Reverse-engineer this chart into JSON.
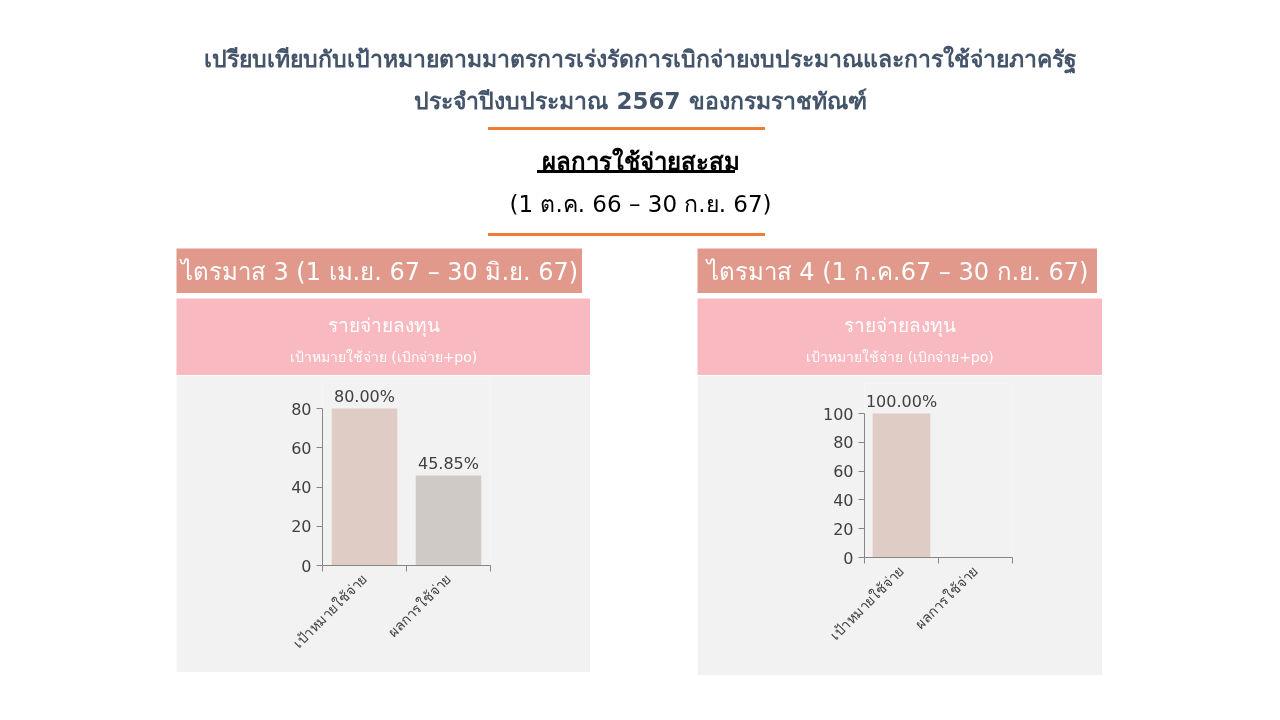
{
  "chart_data": [
    {
      "type": "other",
      "title": "เปรียบเทียบกับเป้าหมายตามมาตรการเร่งรัดการเบิกจ่ายงบประมาณและการใช้จ่ายภาครัฐ ประจำปีงบประมาณ 2567 ของกรมราชทัณฑ์",
      "subtitle": "ผลการใช้จ่ายสะสม",
      "annotations": [
        "(1 ต.ค. 66 – 30 ก.ย. 67)"
      ]
    },
    {
      "type": "bar",
      "title": "ไตรมาส 3 (1 เม.ย. 67 – 30 มิ.ย. 67)",
      "subtitle": "รายจ่ายลงทุน",
      "annotations": [
        "เป้าหมายใช้จ่าย (เบิกจ่าย+po)"
      ],
      "categories": [
        "เป้าหมายใช้จ่าย",
        "ผลการใช้จ่าย"
      ],
      "values": [
        80,
        45.85
      ],
      "colors": [
        "#dfccc5",
        "#d0cac6"
      ],
      "value_labels": [
        "80.00%",
        "45.85%"
      ],
      "ylim": [
        0,
        80
      ],
      "yticks": [
        0,
        20,
        40,
        60,
        80
      ],
      "grid": false
    },
    {
      "type": "bar",
      "title": "ไตรมาส 4 (1 ก.ค.67 – 30 ก.ย. 67)",
      "subtitle": "รายจ่ายลงทุน",
      "annotations": [
        "เป้าหมายใช้จ่าย (เบิกจ่าย+po)"
      ],
      "categories": [
        "เป้าหมายใช้จ่าย",
        "ผลการใช้จ่าย"
      ],
      "values": [
        100,
        null
      ],
      "colors": [
        "#dfccc5",
        "#d0cac6"
      ],
      "value_labels": [
        "100.00%",
        null
      ],
      "ylim": [
        0,
        100
      ],
      "yticks": [
        0,
        20,
        40,
        60,
        80,
        100
      ],
      "grid": false
    }
  ]
}
